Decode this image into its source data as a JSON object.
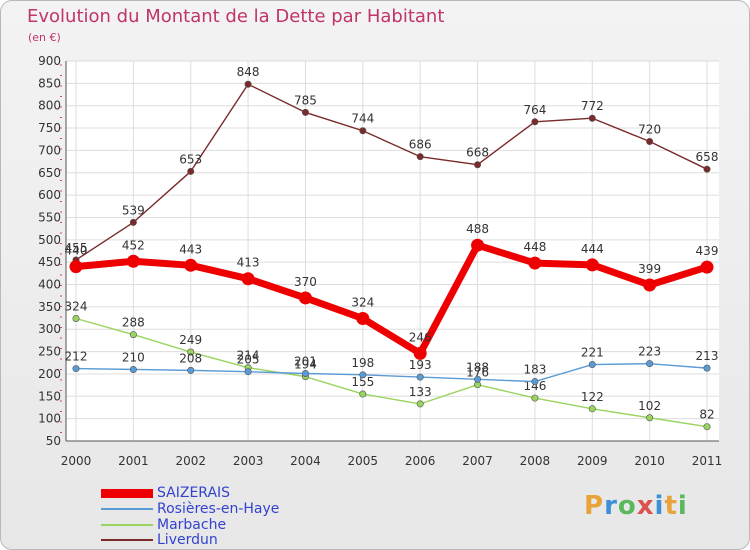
{
  "title": "Evolution du Montant de la Dette par Habitant",
  "unit": "(en €)",
  "logo": {
    "letters": [
      "P",
      "r",
      "o",
      "x",
      "i",
      "t",
      "i"
    ],
    "colors": [
      "#e8a33b",
      "#3d8fd6",
      "#5cb85c",
      "#d9534f",
      "#3d8fd6",
      "#e8a33b",
      "#5cb85c"
    ]
  },
  "chart_data": {
    "type": "line",
    "title": "Evolution du Montant de la Dette par Habitant",
    "unit": "(en €)",
    "x": [
      "2000",
      "2001",
      "2002",
      "2003",
      "2004",
      "2005",
      "2006",
      "2007",
      "2008",
      "2009",
      "2010",
      "2011"
    ],
    "ylim": [
      50,
      900
    ],
    "yticks": [
      50,
      100,
      150,
      200,
      250,
      300,
      350,
      400,
      450,
      500,
      550,
      600,
      650,
      700,
      750,
      800,
      850,
      900
    ],
    "grid": true,
    "legend_position": "bottom-left",
    "series": [
      {
        "name": "SAIZERAIS",
        "color": "#ee0000",
        "values": [
          440,
          452,
          443,
          413,
          370,
          324,
          246,
          488,
          448,
          444,
          399,
          439
        ]
      },
      {
        "name": "Rosières-en-Haye",
        "color": "#5b9bd5",
        "values": [
          212,
          210,
          208,
          205,
          201,
          198,
          193,
          188,
          183,
          221,
          223,
          213
        ]
      },
      {
        "name": "Marbache",
        "color": "#99d45e",
        "values": [
          324,
          288,
          249,
          214,
          194,
          155,
          133,
          176,
          146,
          122,
          102,
          82
        ]
      },
      {
        "name": "Liverdun",
        "color": "#7a2a2a",
        "values": [
          455,
          539,
          653,
          848,
          785,
          744,
          686,
          668,
          764,
          772,
          720,
          658
        ]
      }
    ]
  }
}
